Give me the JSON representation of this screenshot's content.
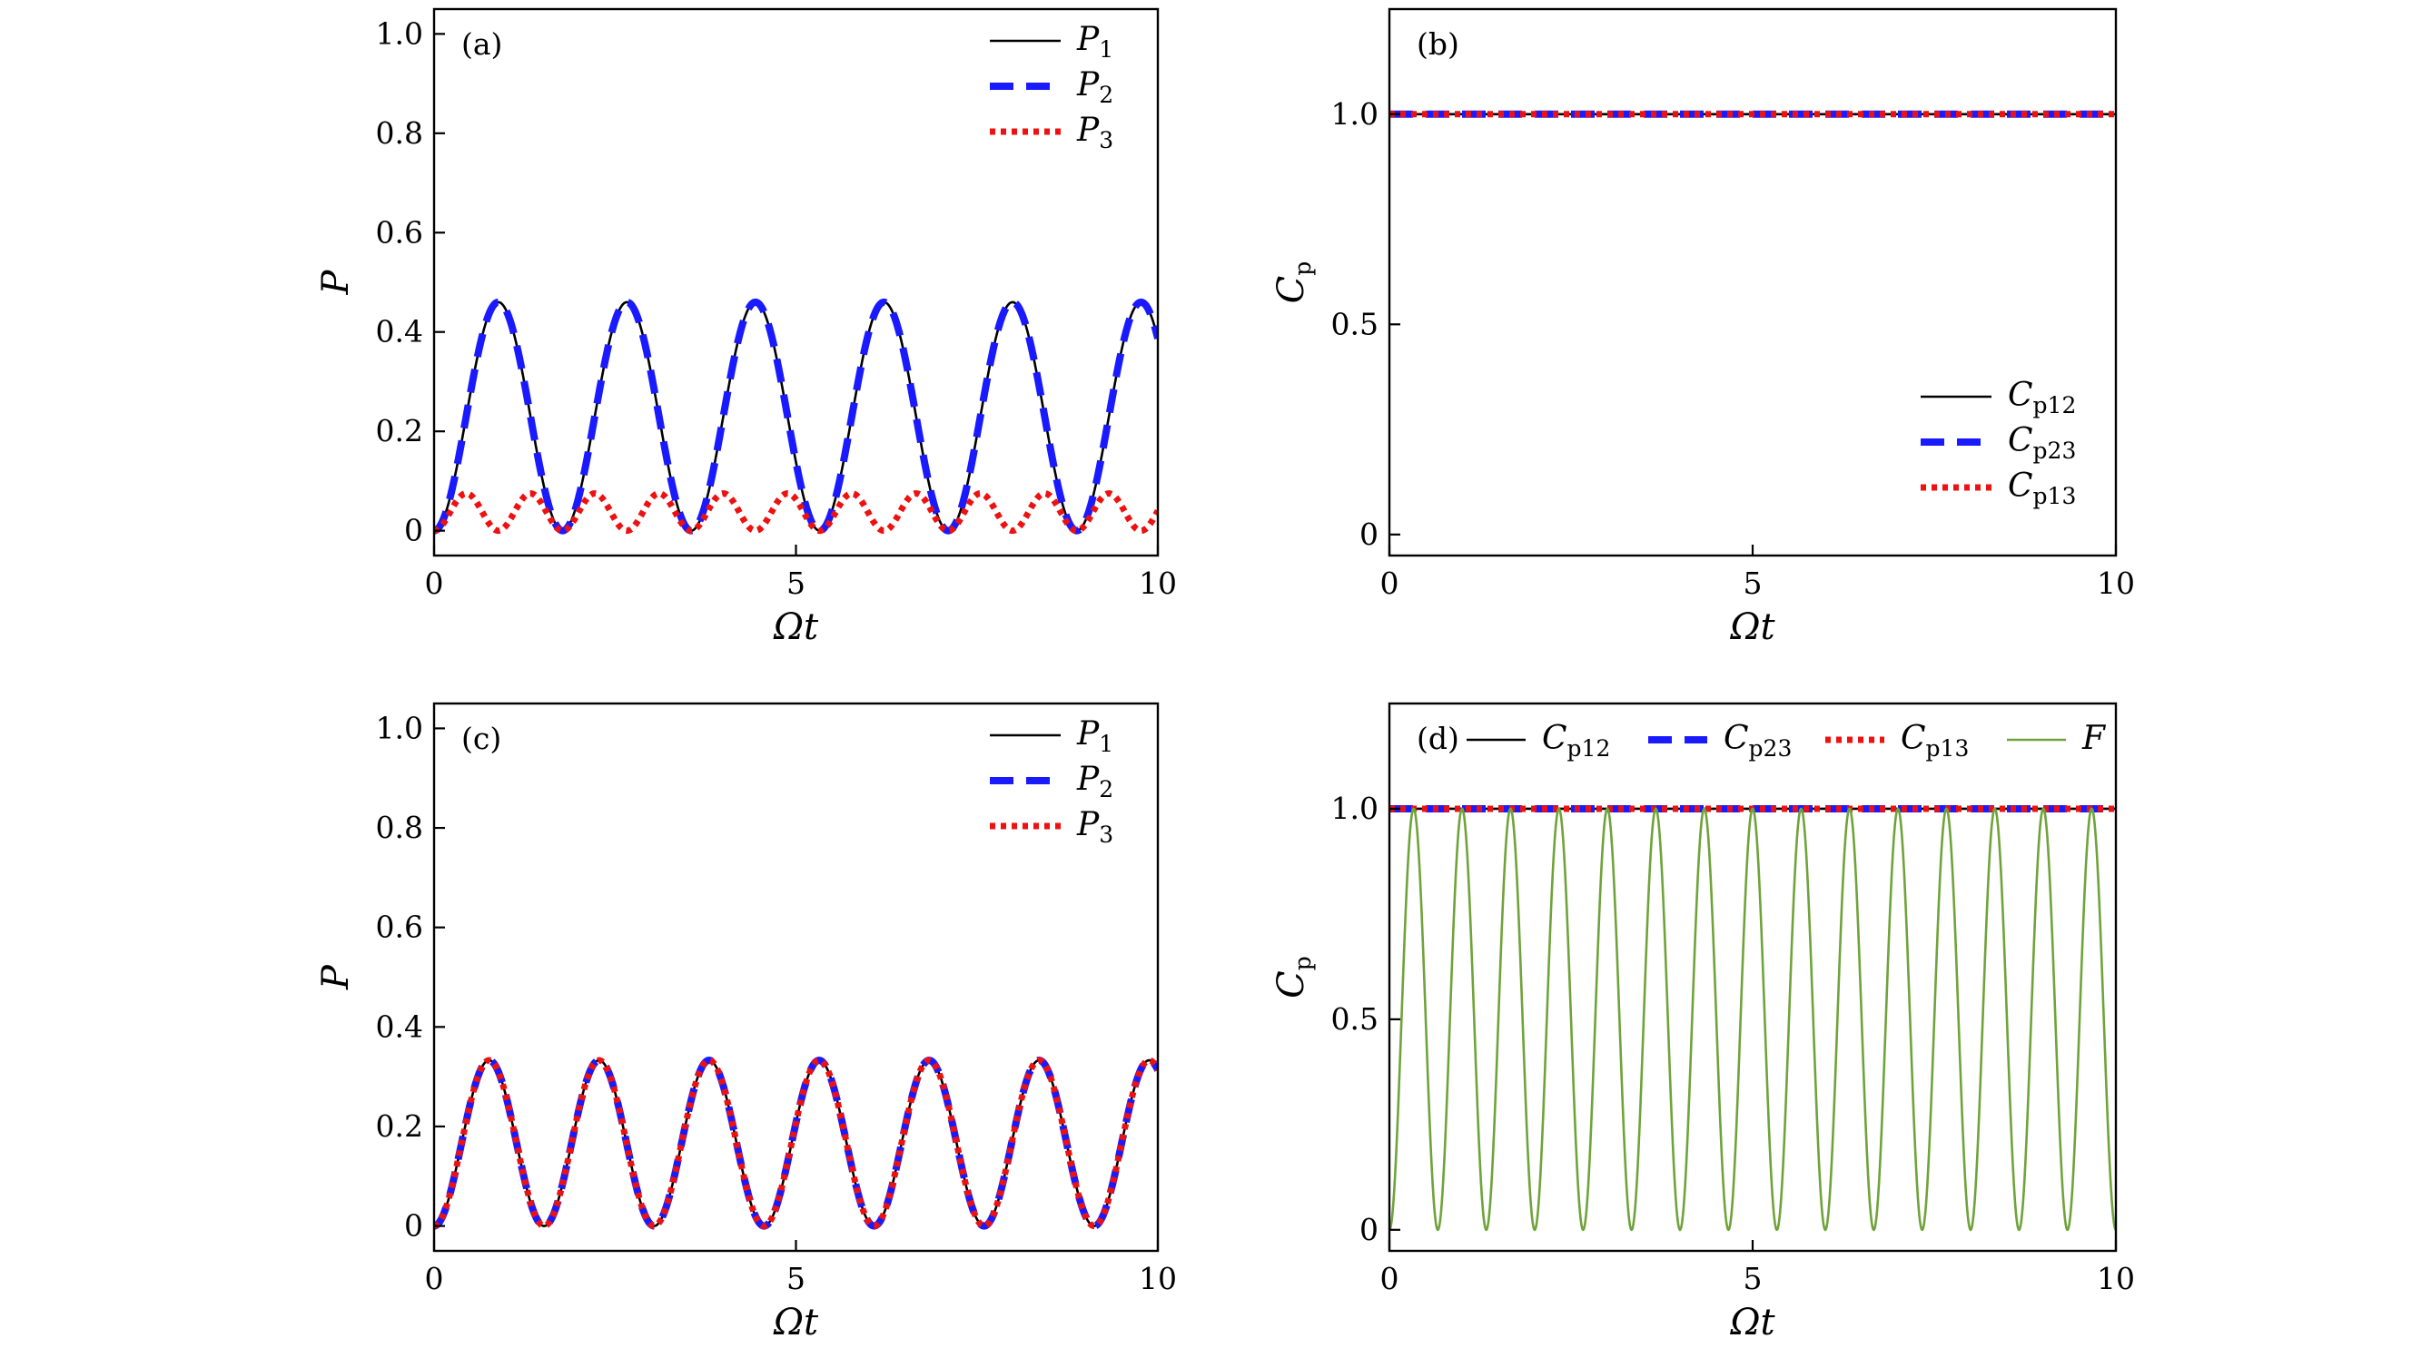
{
  "figure": {
    "background": "#ffffff",
    "colors": {
      "P1": "#000000",
      "P2": "#1a1aff",
      "P3": "#ee1111",
      "F": "#6fa33a"
    }
  },
  "chart_data": [
    {
      "id": "a",
      "type": "line",
      "panel_label": "(a)",
      "xlabel": "Ωt",
      "ylabel": "P",
      "ylabel_sub": "",
      "xlim": [
        0,
        10
      ],
      "ylim": [
        -0.05,
        1.05
      ],
      "xticks": [
        0,
        5,
        10
      ],
      "xtick_labels": [
        "0",
        "5",
        "10"
      ],
      "yticks": [
        0,
        0.2,
        0.4,
        0.6,
        0.8,
        1.0
      ],
      "ytick_labels": [
        "0",
        "0.2",
        "0.4",
        "0.6",
        "0.8",
        "1.0"
      ],
      "legend": {
        "position": "top-right",
        "layout": "vertical"
      },
      "series": [
        {
          "key": "P1",
          "label": "P",
          "sub": "1",
          "style": "solid",
          "color": "#000000",
          "func": {
            "kind": "sin2",
            "amp": 0.46,
            "period": 1.776,
            "phase": 0
          }
        },
        {
          "key": "P2",
          "label": "P",
          "sub": "2",
          "style": "dashed",
          "color": "#1a1aff",
          "func": {
            "kind": "sin2",
            "amp": 0.46,
            "period": 1.776,
            "phase": 0
          }
        },
        {
          "key": "P3",
          "label": "P",
          "sub": "3",
          "style": "dotted",
          "color": "#ee1111",
          "func": {
            "kind": "sin2",
            "amp": 0.075,
            "period": 0.888,
            "phase": 0
          }
        }
      ]
    },
    {
      "id": "b",
      "type": "line",
      "panel_label": "(b)",
      "xlabel": "Ωt",
      "ylabel": "C",
      "ylabel_sub": "p",
      "xlim": [
        0,
        10
      ],
      "ylim": [
        -0.05,
        1.25
      ],
      "xticks": [
        0,
        5,
        10
      ],
      "xtick_labels": [
        "0",
        "5",
        "10"
      ],
      "yticks": [
        0,
        0.5,
        1.0
      ],
      "ytick_labels": [
        "0",
        "0.5",
        "1.0"
      ],
      "legend": {
        "position": "bottom-right",
        "layout": "vertical"
      },
      "series": [
        {
          "key": "Cp12",
          "label": "C",
          "sub": "p12",
          "style": "solid",
          "color": "#000000",
          "func": {
            "kind": "const",
            "value": 1.0
          }
        },
        {
          "key": "Cp23",
          "label": "C",
          "sub": "p23",
          "style": "dashed",
          "color": "#1a1aff",
          "func": {
            "kind": "const",
            "value": 1.0
          }
        },
        {
          "key": "Cp13",
          "label": "C",
          "sub": "p13",
          "style": "dotted",
          "color": "#ee1111",
          "func": {
            "kind": "const",
            "value": 1.0
          }
        }
      ]
    },
    {
      "id": "c",
      "type": "line",
      "panel_label": "(c)",
      "xlabel": "Ωt",
      "ylabel": "P",
      "ylabel_sub": "",
      "xlim": [
        0,
        10
      ],
      "ylim": [
        -0.05,
        1.05
      ],
      "xticks": [
        0,
        5,
        10
      ],
      "xtick_labels": [
        "0",
        "5",
        "10"
      ],
      "yticks": [
        0,
        0.2,
        0.4,
        0.6,
        0.8,
        1.0
      ],
      "ytick_labels": [
        "0",
        "0.2",
        "0.4",
        "0.6",
        "0.8",
        "1.0"
      ],
      "legend": {
        "position": "top-right",
        "layout": "vertical"
      },
      "series": [
        {
          "key": "P1",
          "label": "P",
          "sub": "1",
          "style": "solid",
          "color": "#000000",
          "func": {
            "kind": "sin2",
            "amp": 0.333,
            "period": 1.52,
            "phase": 0
          }
        },
        {
          "key": "P2",
          "label": "P",
          "sub": "2",
          "style": "dashed",
          "color": "#1a1aff",
          "func": {
            "kind": "sin2",
            "amp": 0.333,
            "period": 1.52,
            "phase": 0
          }
        },
        {
          "key": "P3",
          "label": "P",
          "sub": "3",
          "style": "dotted",
          "color": "#ee1111",
          "func": {
            "kind": "sin2",
            "amp": 0.333,
            "period": 1.52,
            "phase": 0
          }
        }
      ]
    },
    {
      "id": "d",
      "type": "line",
      "panel_label": "(d)",
      "xlabel": "Ωt",
      "ylabel": "C",
      "ylabel_sub": "p",
      "xlim": [
        0,
        10
      ],
      "ylim": [
        -0.05,
        1.25
      ],
      "xticks": [
        0,
        5,
        10
      ],
      "xtick_labels": [
        "0",
        "5",
        "10"
      ],
      "yticks": [
        0,
        0.5,
        1.0
      ],
      "ytick_labels": [
        "0",
        "0.5",
        "1.0"
      ],
      "legend": {
        "position": "top",
        "layout": "horizontal"
      },
      "series": [
        {
          "key": "Cp12",
          "label": "C",
          "sub": "p12",
          "style": "solid",
          "color": "#000000",
          "func": {
            "kind": "const",
            "value": 1.0
          }
        },
        {
          "key": "Cp23",
          "label": "C",
          "sub": "p23",
          "style": "dashed",
          "color": "#1a1aff",
          "func": {
            "kind": "const",
            "value": 1.0
          }
        },
        {
          "key": "Cp13",
          "label": "C",
          "sub": "p13",
          "style": "dotted",
          "color": "#ee1111",
          "func": {
            "kind": "const",
            "value": 1.0
          }
        },
        {
          "key": "F",
          "label": "F",
          "sub": "",
          "style": "thin",
          "color": "#6fa33a",
          "func": {
            "kind": "sin2",
            "amp": 1.0,
            "period": 0.6667,
            "phase": 0
          }
        }
      ]
    }
  ]
}
